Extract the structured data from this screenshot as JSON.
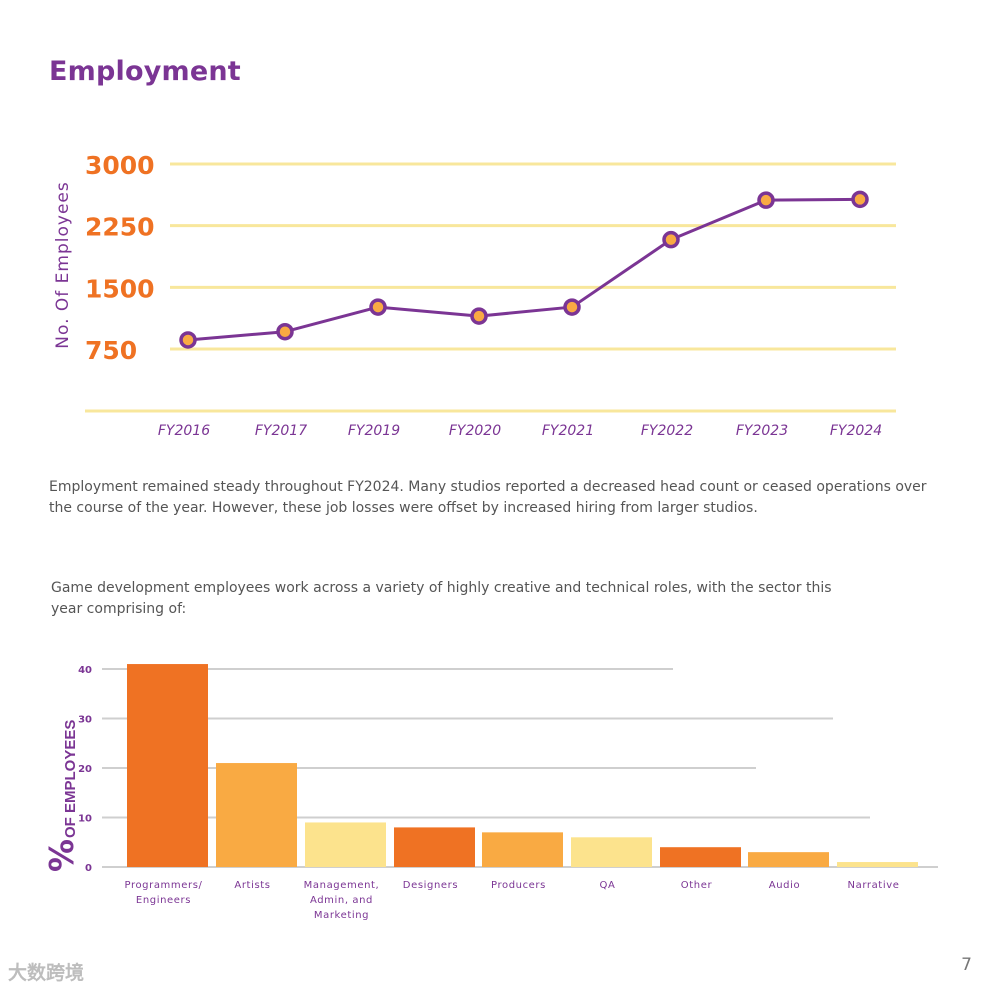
{
  "page": {
    "title": "Employment",
    "paragraph_1": "Employment remained steady throughout FY2024.  Many studios reported a decreased head count or ceased operations over the course of the year.  However, these job losses were offset by increased hiring from larger studios.",
    "paragraph_2": "Game development employees work across a variety of highly creative and technical roles, with the sector this year comprising of:",
    "page_number": "7",
    "watermark": "大数跨境"
  },
  "colors": {
    "purple": "#7b3594",
    "orange": "#ef7223",
    "light_orange": "#f9aa43",
    "pale_yellow": "#fce38d",
    "grid_yellow": "#f8e79c",
    "grid_gray": "#cfcfcf"
  },
  "chart_data": [
    {
      "type": "line",
      "title": "",
      "ylabel": "No. Of Employees",
      "xlabel": "",
      "categories": [
        "FY2016",
        "FY2017",
        "FY2019",
        "FY2020",
        "FY2021",
        "FY2022",
        "FY2023",
        "FY2024"
      ],
      "values": [
        860,
        960,
        1260,
        1150,
        1260,
        2080,
        2560,
        2570
      ],
      "y_ticks": [
        750,
        1500,
        2250,
        3000
      ],
      "y_tick_labels": [
        "750",
        "1500",
        "2250",
        "3000"
      ],
      "ylim": [
        0,
        3000
      ],
      "grid": true
    },
    {
      "type": "bar",
      "title": "",
      "ylabel": "% OF EMPLOYEES",
      "ylabel_prefix": "%",
      "ylabel_text": "OF EMPLOYEES",
      "categories": [
        "Programmers/ Engineers",
        "Artists",
        "Management, Admin, and Marketing",
        "Designers",
        "Producers",
        "QA",
        "Other",
        "Audio",
        "Narrative"
      ],
      "category_lines": [
        [
          "Programmers/",
          "Engineers"
        ],
        [
          "Artists"
        ],
        [
          "Management,",
          "Admin, and",
          "Marketing"
        ],
        [
          "Designers"
        ],
        [
          "Producers"
        ],
        [
          "QA"
        ],
        [
          "Other"
        ],
        [
          "Audio"
        ],
        [
          "Narrative"
        ]
      ],
      "values": [
        41,
        21,
        9,
        8,
        7,
        6,
        4,
        3,
        1
      ],
      "bar_colors": [
        "#ef7223",
        "#f9aa43",
        "#fce38d",
        "#ef7223",
        "#f9aa43",
        "#fce38d",
        "#ef7223",
        "#f9aa43",
        "#fce38d"
      ],
      "y_ticks": [
        0,
        10,
        20,
        30,
        40
      ],
      "y_tick_labels": [
        "0",
        "10",
        "20",
        "30",
        "40"
      ],
      "ylim": [
        0,
        40
      ],
      "grid": true
    }
  ]
}
